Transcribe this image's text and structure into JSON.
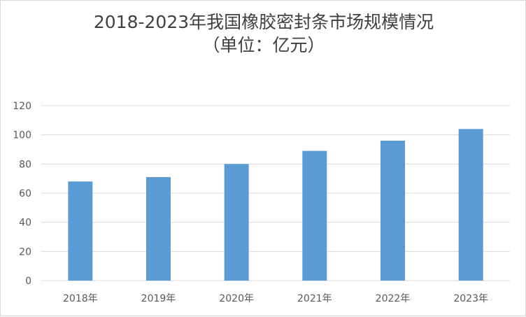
{
  "colors": {
    "bar": "#5b9bd5",
    "grid": "#d9d9d9",
    "text": "#595959",
    "title": "#404040"
  },
  "chart_data": {
    "type": "bar",
    "title": "2018-2023年我国橡胶密封条市场规模情况",
    "subtitle": "（单位：亿元）",
    "categories": [
      "2018年",
      "2019年",
      "2020年",
      "2021年",
      "2022年",
      "2023年"
    ],
    "values": [
      68,
      71,
      80,
      89,
      96,
      104
    ],
    "ylim": [
      0,
      120
    ],
    "yticks": [
      0,
      20,
      40,
      60,
      80,
      100,
      120
    ],
    "grid": true,
    "legend": "none"
  }
}
